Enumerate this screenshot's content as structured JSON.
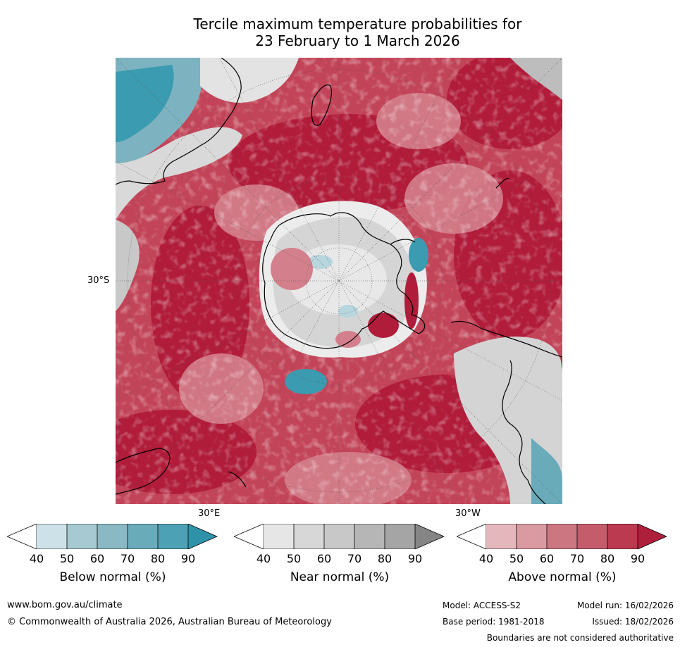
{
  "title_line1": "Tercile maximum temperature probabilities for",
  "title_line2": "23 February to 1 March 2026",
  "map": {
    "lat_label": "30°S",
    "lon_label_east": "30°E",
    "lon_label_west": "30°W"
  },
  "legends": {
    "below": {
      "label": "Below normal (%)",
      "ticks": [
        "40",
        "50",
        "60",
        "70",
        "80",
        "90"
      ],
      "colors": [
        "#ffffff",
        "#cde2e8",
        "#a7c9d1",
        "#8ab9c4",
        "#6aabba",
        "#4da1b4",
        "#2e93a8"
      ]
    },
    "near": {
      "label": "Near normal (%)",
      "ticks": [
        "40",
        "50",
        "60",
        "70",
        "80",
        "90"
      ],
      "colors": [
        "#ffffff",
        "#e6e6e6",
        "#d7d7d7",
        "#c8c8c8",
        "#b6b6b6",
        "#a5a5a5",
        "#858585"
      ]
    },
    "above": {
      "label": "Above normal (%)",
      "ticks": [
        "40",
        "50",
        "60",
        "70",
        "80",
        "90"
      ],
      "colors": [
        "#ffffff",
        "#e4b7bc",
        "#d99aa2",
        "#cc7682",
        "#c45c6c",
        "#bb3a50",
        "#ae1f3c"
      ]
    }
  },
  "footer": {
    "website": "www.bom.gov.au/climate",
    "copyright": "© Commonwealth of Australia 2026, Australian Bureau of Meteorology",
    "model": "Model: ACCESS-S2",
    "model_run": "Model run: 16/02/2026",
    "base_period": "Base period: 1981-2018",
    "issued": "Issued: 18/02/2026",
    "disclaimer": "Boundaries are not considered authoritative"
  }
}
